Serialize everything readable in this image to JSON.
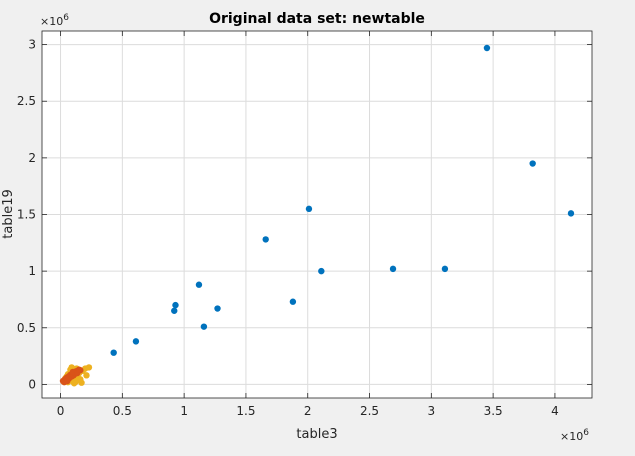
{
  "window": {
    "background": "#f0f0f0"
  },
  "chart_data": {
    "type": "scatter",
    "title": "Original data set: newtable",
    "xlabel": "table3",
    "ylabel": "table19",
    "x_exponent_label": "×10",
    "x_exponent_power": "6",
    "y_exponent_label": "×10",
    "y_exponent_power": "6",
    "xlim": [
      -150000,
      4300000
    ],
    "ylim": [
      -120000,
      3120000
    ],
    "xticks": [
      0,
      500000,
      1000000,
      1500000,
      2000000,
      2500000,
      3000000,
      3500000,
      4000000
    ],
    "xtick_labels": [
      "0",
      "0.5",
      "1",
      "1.5",
      "2",
      "2.5",
      "3",
      "3.5",
      "4"
    ],
    "yticks": [
      0,
      500000,
      1000000,
      1500000,
      2000000,
      2500000,
      3000000
    ],
    "ytick_labels": [
      "0",
      "0.5",
      "1",
      "1.5",
      "2",
      "2.5",
      "3"
    ],
    "grid": true,
    "legend": "none",
    "colors": {
      "blue": "#0072bd",
      "red": "#d95319",
      "yellow": "#edb120",
      "grid": "#dcdcdc",
      "axis": "#262626"
    },
    "series": [
      {
        "color": "#0072bd",
        "points": [
          [
            3450000,
            2970000
          ],
          [
            3820000,
            1950000
          ],
          [
            4130000,
            1510000
          ],
          [
            2010000,
            1550000
          ],
          [
            1660000,
            1280000
          ],
          [
            2110000,
            1000000
          ],
          [
            2690000,
            1020000
          ],
          [
            3110000,
            1020000
          ],
          [
            1120000,
            880000
          ],
          [
            930000,
            700000
          ],
          [
            920000,
            650000
          ],
          [
            1270000,
            670000
          ],
          [
            1160000,
            510000
          ],
          [
            1880000,
            730000
          ],
          [
            610000,
            380000
          ],
          [
            430000,
            280000
          ]
        ]
      },
      {
        "color": "#edb120",
        "points": [
          [
            25000,
            25000
          ],
          [
            40000,
            55000
          ],
          [
            60000,
            90000
          ],
          [
            80000,
            130000
          ],
          [
            100000,
            40000
          ],
          [
            120000,
            20000
          ],
          [
            140000,
            60000
          ],
          [
            150000,
            100000
          ],
          [
            170000,
            15000
          ],
          [
            90000,
            150000
          ],
          [
            60000,
            20000
          ],
          [
            200000,
            140000
          ],
          [
            230000,
            150000
          ],
          [
            210000,
            80000
          ],
          [
            180000,
            120000
          ],
          [
            130000,
            140000
          ],
          [
            110000,
            10000
          ],
          [
            50000,
            70000
          ],
          [
            75000,
            35000
          ],
          [
            160000,
            45000
          ]
        ]
      },
      {
        "color": "#d95319",
        "points": [
          [
            20000,
            30000
          ],
          [
            35000,
            45000
          ],
          [
            50000,
            60000
          ],
          [
            65000,
            70000
          ],
          [
            80000,
            85000
          ],
          [
            95000,
            95000
          ],
          [
            110000,
            105000
          ],
          [
            125000,
            115000
          ],
          [
            140000,
            120000
          ],
          [
            160000,
            125000
          ],
          [
            45000,
            40000
          ],
          [
            70000,
            55000
          ],
          [
            90000,
            70000
          ],
          [
            105000,
            80000
          ],
          [
            120000,
            95000
          ],
          [
            30000,
            20000
          ],
          [
            55000,
            30000
          ],
          [
            100000,
            110000
          ],
          [
            135000,
            100000
          ],
          [
            150000,
            130000
          ]
        ]
      }
    ]
  }
}
